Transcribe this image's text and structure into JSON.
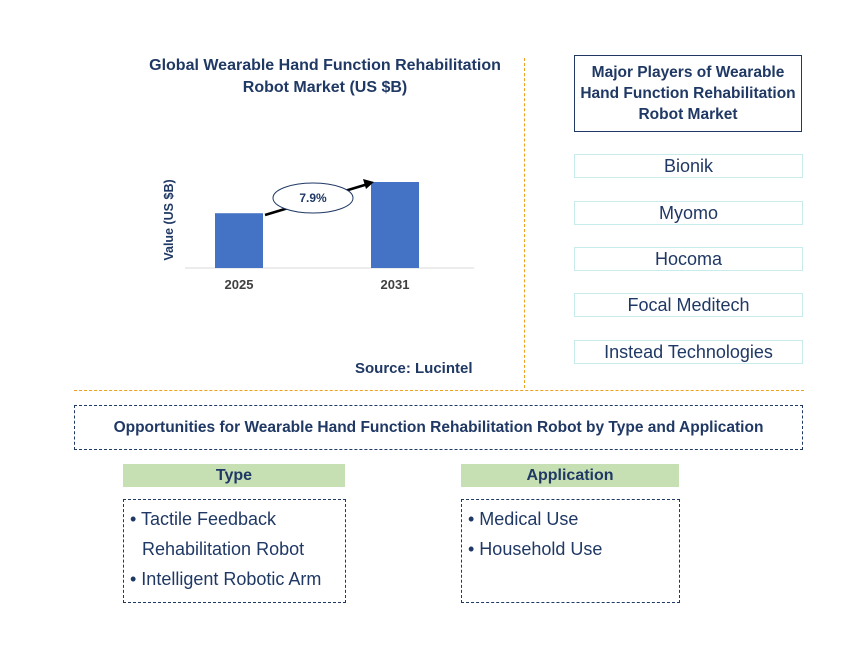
{
  "chart_data": {
    "type": "bar",
    "title": "Global Wearable Hand Function Rehabilitation Robot Market (US $B)",
    "ylabel": "Value (US $B)",
    "categories": [
      "2025",
      "2031"
    ],
    "values": [
      1.0,
      1.57
    ],
    "annotation": "7.9%",
    "colors": {
      "bar": "#4472c4"
    }
  },
  "source": "Source: Lucintel",
  "players": {
    "title": "Major Players of Wearable Hand Function Rehabilitation Robot Market",
    "items": [
      "Bionik",
      "Myomo",
      "Hocoma",
      "Focal Meditech",
      "Instead Technologies"
    ]
  },
  "opportunities": {
    "title": "Opportunities for Wearable Hand Function Rehabilitation Robot by Type and Application",
    "type": {
      "heading": "Type",
      "items": [
        "• Tactile Feedback Rehabilitation Robot",
        "• Intelligent Robotic Arm"
      ]
    },
    "application": {
      "heading": "Application",
      "items": [
        "• Medical Use",
        "• Household Use"
      ]
    }
  }
}
